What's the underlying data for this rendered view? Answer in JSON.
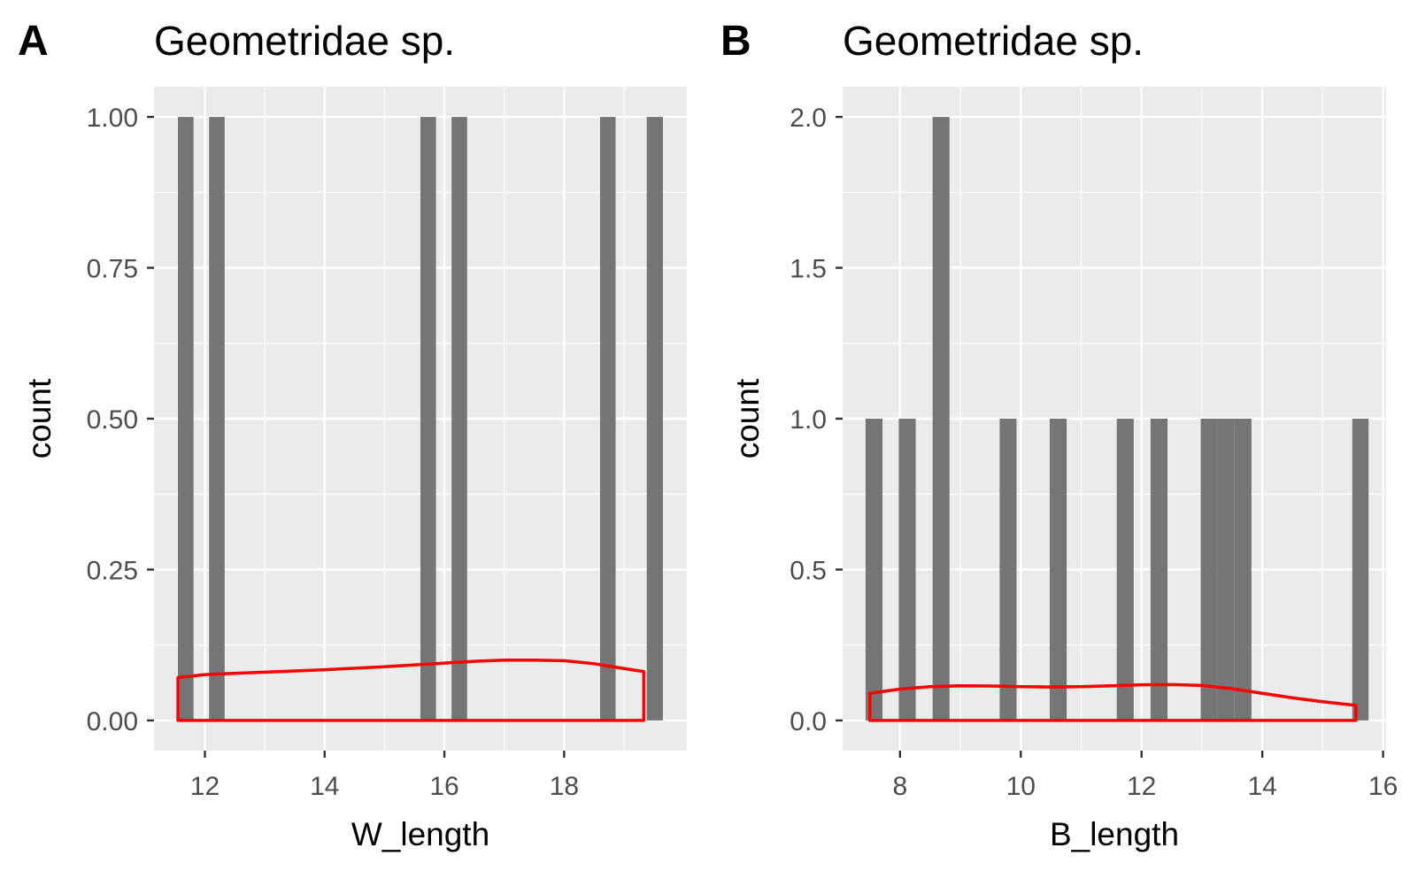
{
  "panels": [
    {
      "label": "A",
      "title": "Geometridae sp."
    },
    {
      "label": "B",
      "title": "Geometridae sp."
    }
  ],
  "chart_data": [
    {
      "type": "bar",
      "subtype": "histogram-with-density",
      "title": "Geometridae sp.",
      "panel_label": "A",
      "xlabel": "W_length",
      "ylabel": "count",
      "xlim": [
        11.15,
        20.05
      ],
      "ylim": [
        -0.05,
        1.05
      ],
      "x_ticks": [
        12,
        14,
        16,
        18
      ],
      "x_tick_labels": [
        "12",
        "14",
        "16",
        "18"
      ],
      "y_ticks": [
        0,
        0.25,
        0.5,
        0.75,
        1
      ],
      "y_tick_labels": [
        "0.00",
        "0.25",
        "0.50",
        "0.75",
        "1.00"
      ],
      "grid": true,
      "colors": {
        "bar_fill": "#757575",
        "density_line": "#FF0000",
        "panel_background": "#EBEBEB",
        "grid": "#FFFFFF"
      },
      "bars": [
        {
          "x0": 11.55,
          "x1": 11.81,
          "count": 1
        },
        {
          "x0": 12.07,
          "x1": 12.33,
          "count": 1
        },
        {
          "x0": 15.6,
          "x1": 15.86,
          "count": 1
        },
        {
          "x0": 16.12,
          "x1": 16.38,
          "count": 1
        },
        {
          "x0": 18.6,
          "x1": 18.86,
          "count": 1
        },
        {
          "x0": 19.38,
          "x1": 19.65,
          "count": 1
        }
      ],
      "density": {
        "x": [
          11.55,
          12.0,
          13.0,
          14.0,
          15.0,
          16.0,
          16.5,
          17.0,
          17.5,
          18.0,
          18.5,
          19.0,
          19.33
        ],
        "y": [
          0.071,
          0.076,
          0.08,
          0.084,
          0.089,
          0.095,
          0.098,
          0.1,
          0.1,
          0.099,
          0.094,
          0.086,
          0.081
        ]
      }
    },
    {
      "type": "bar",
      "subtype": "histogram-with-density",
      "title": "Geometridae sp.",
      "panel_label": "B",
      "xlabel": "B_length",
      "ylabel": "count",
      "xlim": [
        7.05,
        16.05
      ],
      "ylim": [
        -0.1,
        2.1
      ],
      "x_ticks": [
        8,
        10,
        12,
        14,
        16
      ],
      "x_tick_labels": [
        "8",
        "10",
        "12",
        "14",
        "16"
      ],
      "y_ticks": [
        0,
        0.5,
        1,
        1.5,
        2
      ],
      "y_tick_labels": [
        "0.0",
        "0.5",
        "1.0",
        "1.5",
        "2.0"
      ],
      "grid": true,
      "colors": {
        "bar_fill": "#757575",
        "density_line": "#FF0000",
        "panel_background": "#EBEBEB",
        "grid": "#FFFFFF"
      },
      "bars": [
        {
          "x0": 7.43,
          "x1": 7.71,
          "count": 1
        },
        {
          "x0": 7.98,
          "x1": 8.26,
          "count": 1
        },
        {
          "x0": 8.54,
          "x1": 8.82,
          "count": 2
        },
        {
          "x0": 9.65,
          "x1": 9.93,
          "count": 1
        },
        {
          "x0": 10.48,
          "x1": 10.76,
          "count": 1
        },
        {
          "x0": 11.59,
          "x1": 11.87,
          "count": 1
        },
        {
          "x0": 12.15,
          "x1": 12.43,
          "count": 1
        },
        {
          "x0": 12.98,
          "x1": 13.26,
          "count": 1
        },
        {
          "x0": 13.26,
          "x1": 13.54,
          "count": 1
        },
        {
          "x0": 13.54,
          "x1": 13.82,
          "count": 1
        },
        {
          "x0": 15.49,
          "x1": 15.76,
          "count": 1
        }
      ],
      "density": {
        "x": [
          7.5,
          8.0,
          8.5,
          9.0,
          9.5,
          10.0,
          10.5,
          11.0,
          11.5,
          12.0,
          12.5,
          13.0,
          13.5,
          14.0,
          14.5,
          15.0,
          15.55
        ],
        "y": [
          0.09,
          0.104,
          0.112,
          0.115,
          0.114,
          0.112,
          0.111,
          0.112,
          0.115,
          0.118,
          0.119,
          0.116,
          0.105,
          0.09,
          0.075,
          0.062,
          0.05
        ]
      }
    }
  ]
}
